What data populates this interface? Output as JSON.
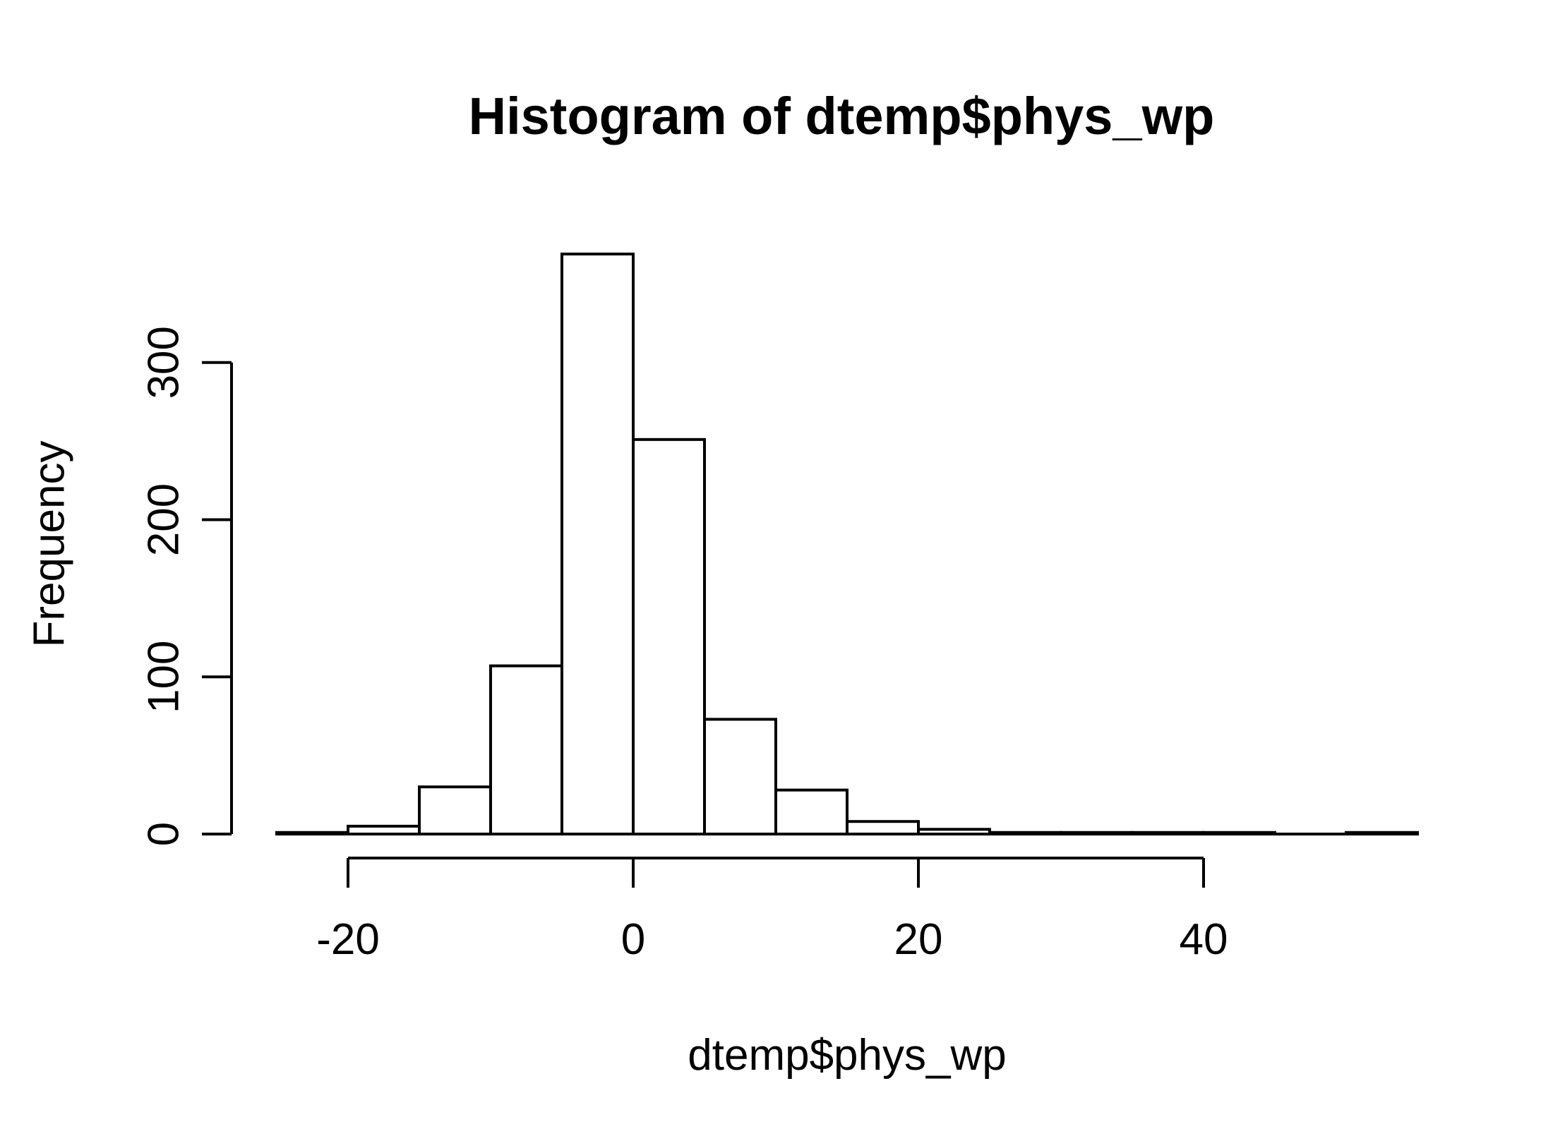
{
  "chart_data": {
    "type": "bar",
    "title": "Histogram of dtemp$phys_wp",
    "xlabel": "dtemp$phys_wp",
    "ylabel": "Frequency",
    "bin_edges": [
      -25,
      -20,
      -15,
      -10,
      -5,
      0,
      5,
      10,
      15,
      20,
      25,
      30,
      35,
      40,
      45,
      50,
      55
    ],
    "values": [
      1,
      5,
      30,
      107,
      369,
      251,
      73,
      28,
      8,
      3,
      1,
      1,
      1,
      1,
      0,
      1
    ],
    "xlim": [
      -25,
      55
    ],
    "ylim": [
      0,
      369
    ],
    "x_ticks": [
      -20,
      0,
      20,
      40
    ],
    "x_tick_labels": [
      "-20",
      "0",
      "20",
      "40"
    ],
    "y_ticks": [
      0,
      100,
      200,
      300
    ],
    "y_tick_labels": [
      "0",
      "100",
      "200",
      "300"
    ],
    "grid": false,
    "legend": "none"
  }
}
